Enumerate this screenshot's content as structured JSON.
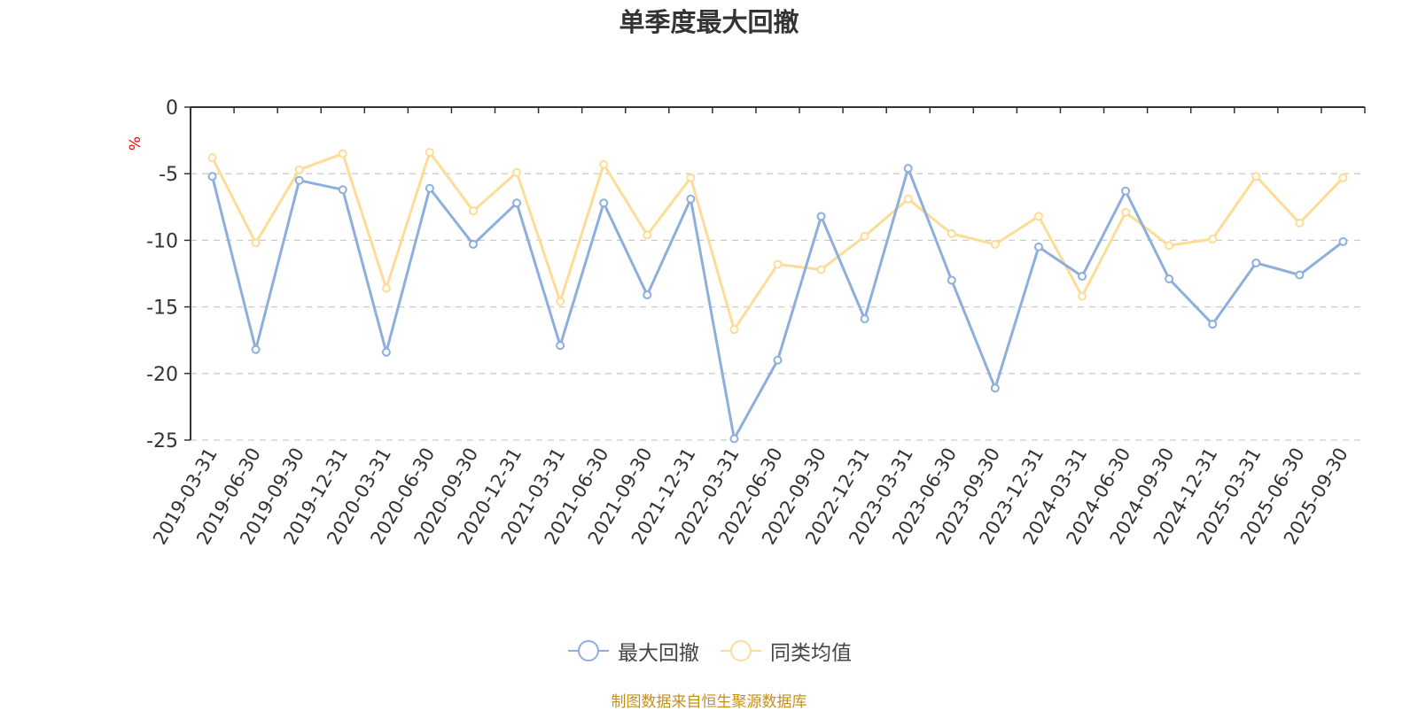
{
  "chart_data": {
    "type": "line",
    "title": "单季度最大回撤",
    "ylabel": "%",
    "xlabel": "",
    "ylim": [
      -25,
      0
    ],
    "yticks": [
      0,
      -5,
      -10,
      -15,
      -20,
      -25
    ],
    "grid": true,
    "legend_position": "bottom-center",
    "categories": [
      "2019-03-31",
      "2019-06-30",
      "2019-09-30",
      "2019-12-31",
      "2020-03-31",
      "2020-06-30",
      "2020-09-30",
      "2020-12-31",
      "2021-03-31",
      "2021-06-30",
      "2021-09-30",
      "2021-12-31",
      "2022-03-31",
      "2022-06-30",
      "2022-09-30",
      "2022-12-31",
      "2023-03-31",
      "2023-06-30",
      "2023-09-30",
      "2023-12-31",
      "2024-03-31",
      "2024-06-30",
      "2024-09-30",
      "2024-12-31",
      "2025-03-31",
      "2025-06-30",
      "2025-09-30"
    ],
    "series": [
      {
        "name": "最大回撤",
        "color": "#8eaedc",
        "values": [
          -5.2,
          -18.2,
          -5.5,
          -6.2,
          -18.4,
          -6.1,
          -10.3,
          -7.2,
          -17.9,
          -7.2,
          -14.1,
          -6.9,
          -24.9,
          -19.0,
          -8.2,
          -15.9,
          -4.6,
          -13.0,
          -21.1,
          -10.5,
          -12.7,
          -6.3,
          -12.9,
          -16.3,
          -11.7,
          -12.6,
          -10.1
        ]
      },
      {
        "name": "同类均值",
        "color": "#fddc97",
        "values": [
          -3.8,
          -10.2,
          -4.7,
          -3.5,
          -13.6,
          -3.4,
          -7.8,
          -4.9,
          -14.6,
          -4.3,
          -9.6,
          -5.3,
          -16.7,
          -11.8,
          -12.2,
          -9.7,
          -6.9,
          -9.5,
          -10.3,
          -8.2,
          -14.2,
          -7.9,
          -10.4,
          -9.9,
          -5.2,
          -8.7,
          -5.3
        ]
      }
    ],
    "source_note": "制图数据来自恒生聚源数据库"
  },
  "colors": {
    "axis": "#333333",
    "grid": "#cccccc",
    "unit_label": "#ff0000",
    "source_note": "#c58f1b"
  }
}
